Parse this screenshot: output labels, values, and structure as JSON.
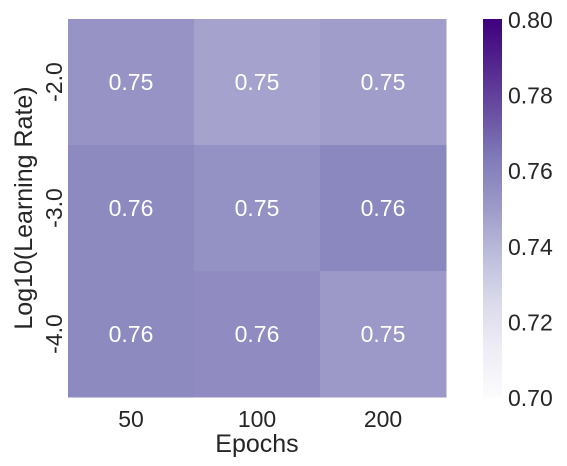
{
  "chart_data": {
    "type": "heatmap",
    "title": "",
    "xlabel": "Epochs",
    "ylabel": "Log10(Learning Rate)",
    "x_categories": [
      "50",
      "100",
      "200"
    ],
    "y_categories": [
      "-2.0",
      "-3.0",
      "-4.0"
    ],
    "values": [
      [
        0.753,
        0.747,
        0.749
      ],
      [
        0.757,
        0.754,
        0.758
      ],
      [
        0.757,
        0.756,
        0.751
      ]
    ],
    "cell_labels": [
      [
        "0.75",
        "0.75",
        "0.75"
      ],
      [
        "0.76",
        "0.75",
        "0.76"
      ],
      [
        "0.76",
        "0.76",
        "0.75"
      ]
    ],
    "colorbar": {
      "min": 0.7,
      "max": 0.8,
      "ticks": [
        "0.70",
        "0.72",
        "0.74",
        "0.76",
        "0.78",
        "0.80"
      ],
      "colormap": "Purples",
      "low_color": "#fcfbfd",
      "high_color": "#3f007d"
    },
    "grid": false
  }
}
